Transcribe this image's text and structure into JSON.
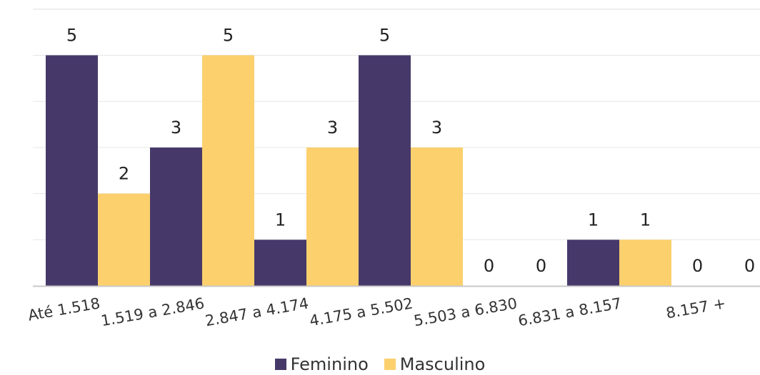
{
  "chart_data": {
    "type": "bar",
    "categories": [
      "Até 1.518",
      "1.519 a 2.846",
      "2.847 a 4.174",
      "4.175 a 5.502",
      "5.503 a 6.830",
      "6.831 a 8.157",
      "8.157 +"
    ],
    "series": [
      {
        "name": "Feminino",
        "values": [
          5,
          3,
          1,
          5,
          0,
          1,
          0
        ],
        "color": "#46396a"
      },
      {
        "name": "Masculino",
        "values": [
          2,
          5,
          3,
          3,
          0,
          1,
          0
        ],
        "color": "#fcd06d"
      }
    ],
    "title": "",
    "xlabel": "",
    "ylabel": "",
    "ylim": [
      0,
      6
    ],
    "grid": true,
    "legend": "bottom",
    "data_labels": true
  }
}
